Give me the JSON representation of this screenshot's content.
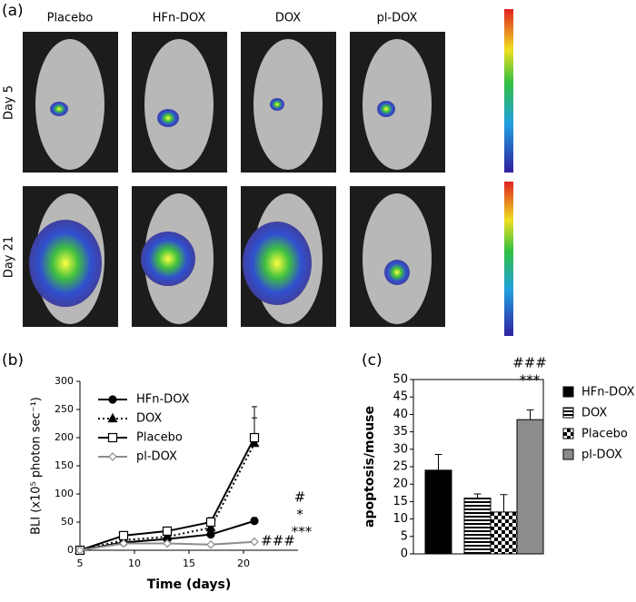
{
  "panel_a": {
    "label": "(a)",
    "columns": [
      "Placebo",
      "HFn-DOX",
      "DOX",
      "pl-DOX"
    ],
    "rows": [
      "Day 5",
      "Day 21"
    ]
  },
  "chart_data": [
    {
      "type": "line",
      "panel_label": "(b)",
      "xlabel": "Time (days)",
      "ylabel": "BLI (x10⁵ photon sec⁻¹)",
      "x": [
        5,
        9,
        13,
        17,
        21
      ],
      "xlim": [
        5,
        25
      ],
      "xticks": [
        5,
        10,
        15,
        20
      ],
      "ylim": [
        0,
        300
      ],
      "yticks": [
        0,
        50,
        100,
        150,
        200,
        250,
        300
      ],
      "series": [
        {
          "name": "HFn-DOX",
          "color": "#000000",
          "marker": "circle",
          "dash": "solid",
          "values": [
            0,
            14,
            20,
            28,
            52
          ],
          "errors": [
            2,
            3,
            3,
            4,
            6
          ]
        },
        {
          "name": "DOX",
          "color": "#000000",
          "marker": "triangle",
          "dash": "dotted",
          "values": [
            0,
            18,
            24,
            40,
            190
          ],
          "errors": [
            2,
            4,
            4,
            6,
            45
          ]
        },
        {
          "name": "Placebo",
          "color": "#000000",
          "marker": "square",
          "dash": "solid",
          "values": [
            0,
            26,
            34,
            50,
            200
          ],
          "errors": [
            3,
            5,
            5,
            8,
            55
          ]
        },
        {
          "name": "pl-DOX",
          "color": "#8c8c8c",
          "marker": "diamond",
          "dash": "solid",
          "values": [
            0,
            12,
            12,
            10,
            15
          ],
          "errors": [
            1,
            2,
            2,
            2,
            2
          ]
        }
      ],
      "annotations": [
        "#",
        "*",
        "***",
        "###"
      ]
    },
    {
      "type": "bar",
      "panel_label": "(c)",
      "ylabel": "apoptosis/mouse",
      "categories": [
        "HFn-DOX",
        "DOX",
        "Placebo",
        "pl-DOX"
      ],
      "values": [
        24,
        16,
        12,
        38.5
      ],
      "errors": [
        4.5,
        1.2,
        5,
        2.8
      ],
      "fills": [
        "black",
        "horizontal-stripes",
        "checkerboard",
        "gray"
      ],
      "ylim": [
        0,
        50
      ],
      "yticks": [
        0,
        5,
        10,
        15,
        20,
        25,
        30,
        35,
        40,
        45,
        50
      ],
      "annotations": [
        "###",
        "***"
      ]
    }
  ]
}
